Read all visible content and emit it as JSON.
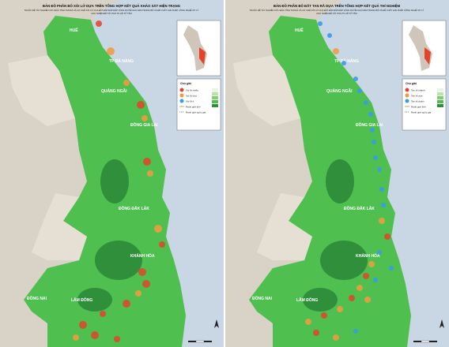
{
  "maps": [
    {
      "title": "BẢN ĐỒ PHÂN BỐ XÓI LỞ DỰA TRÊN TỔNG HỢP KẾT QUẢ KHẢO SÁT HIỆN TRẠNG",
      "subtitle": "THUỘC ĐỀ TÀI: NGHIÊN CỨU ĐẶC TÍNH TAN RÃ VÀ CƠ CHẾ XÓI LỞ CỦA ĐẤT ĐẮP ĐẬP ĐẬP VÙNG DUYÊN HẢI NAM TRUNG BỘ VÀ ĐỀ XUẤT GIẢI PHÁP CÔNG NGHỆ XỬ LÝ",
      "subtitle2": "CHỦ NHIỆM ĐỀ TÀI: PGS.TS HỒ SỸ TÂM",
      "regions": [
        "HUẾ",
        "TP ĐÀ NẴNG",
        "QUẢNG NGÃI",
        "ĐỒNG GIA LAI",
        "ĐỒNG ĐẮK LẮK",
        "KHÁNH HÒA",
        "LÂM ĐỒNG",
        "ĐỒNG NAI"
      ],
      "legend_title": "Chú giải",
      "legend_items": [
        "Xói lở nhiều",
        "Xói lở vừa",
        "Xói lở ít",
        "Ranh giới tỉnh",
        "Ranh giới quốc gia"
      ]
    },
    {
      "title": "BẢN ĐỒ PHÂN BỐ ĐẤT TAN RÃ DỰA TRÊN TỔNG HỢP KẾT QUẢ THÍ NGHIỆM",
      "subtitle": "THUỘC ĐỀ TÀI: NGHIÊN CỨU ĐẶC TÍNH TAN RÃ VÀ CƠ CHẾ XÓI LỞ CỦA ĐẤT ĐẮP ĐẬP ĐẬP VÙNG DUYÊN HẢI NAM TRUNG BỘ VÀ ĐỀ XUẤT GIẢI PHÁP CÔNG NGHỆ XỬ LÝ",
      "subtitle2": "CHỦ NHIỆM ĐỀ TÀI: PGS.TS HỒ SỸ TÂM",
      "regions": [
        "HUẾ",
        "TP ĐÀ NẴNG",
        "QUẢNG NGÃI",
        "ĐỒNG GIA LAI",
        "ĐỒNG ĐẮK LẮK",
        "KHÁNH HÒA",
        "LÂM ĐỒNG",
        "ĐỒNG NAI"
      ],
      "legend_title": "Chú giải",
      "legend_items": [
        "Tan rã nhanh",
        "Tan rã vừa",
        "Tan rã chậm",
        "Ranh giới tỉnh",
        "Ranh giới quốc gia"
      ]
    }
  ],
  "colors": {
    "land": "#4fbf4f",
    "land_dark": "#2f8f3a",
    "lowland": "#e6dfd3",
    "sea": "#c9d6e3",
    "neighbor": "#d9d2c6",
    "high_risk": "#e2432a",
    "mid_risk": "#f39a3c",
    "low_risk": "#3a9be8"
  },
  "icons": [
    "compass-icon",
    "inset-map-icon",
    "scale-bar-icon"
  ]
}
